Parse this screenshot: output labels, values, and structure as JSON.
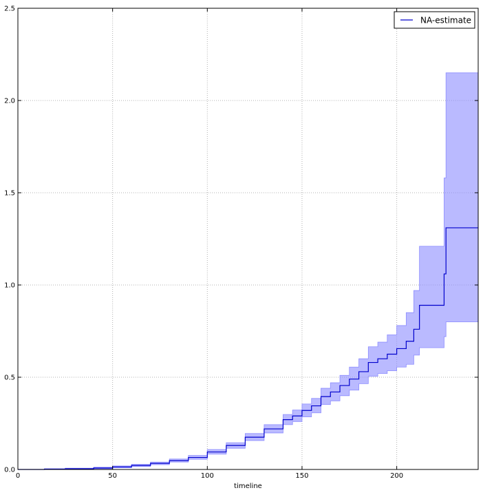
{
  "chart_data": {
    "type": "line",
    "title": "",
    "xlabel": "timeline",
    "ylabel": "",
    "xlim": [
      0,
      243
    ],
    "ylim": [
      0,
      2.5
    ],
    "xticks": [
      0,
      50,
      100,
      150,
      200
    ],
    "xtick_labels": [
      "0",
      "50",
      "100",
      "150",
      "200"
    ],
    "yticks": [
      0,
      0.5,
      1.0,
      1.5,
      2.0,
      2.5
    ],
    "ytick_labels": [
      "0.0",
      "0.5",
      "1.0",
      "1.5",
      "2.0",
      "2.5"
    ],
    "grid": true,
    "legend_position": "top-right",
    "line_color": "#0000cc",
    "band_color": "#8c8cff",
    "series": [
      {
        "name": "NA-estimate",
        "step": "post",
        "points": [
          {
            "x": 0,
            "y": 0,
            "lower": 0,
            "upper": 0
          },
          {
            "x": 14,
            "y": 0.002,
            "lower": 0.0,
            "upper": 0.004
          },
          {
            "x": 25,
            "y": 0.004,
            "lower": 0.001,
            "upper": 0.007
          },
          {
            "x": 40,
            "y": 0.008,
            "lower": 0.004,
            "upper": 0.012
          },
          {
            "x": 50,
            "y": 0.014,
            "lower": 0.009,
            "upper": 0.019
          },
          {
            "x": 60,
            "y": 0.022,
            "lower": 0.016,
            "upper": 0.028
          },
          {
            "x": 70,
            "y": 0.033,
            "lower": 0.026,
            "upper": 0.04
          },
          {
            "x": 80,
            "y": 0.048,
            "lower": 0.04,
            "upper": 0.057
          },
          {
            "x": 90,
            "y": 0.065,
            "lower": 0.055,
            "upper": 0.076
          },
          {
            "x": 100,
            "y": 0.095,
            "lower": 0.083,
            "upper": 0.108
          },
          {
            "x": 110,
            "y": 0.13,
            "lower": 0.115,
            "upper": 0.145
          },
          {
            "x": 120,
            "y": 0.175,
            "lower": 0.157,
            "upper": 0.195
          },
          {
            "x": 130,
            "y": 0.22,
            "lower": 0.198,
            "upper": 0.243
          },
          {
            "x": 140,
            "y": 0.27,
            "lower": 0.243,
            "upper": 0.298
          },
          {
            "x": 145,
            "y": 0.29,
            "lower": 0.26,
            "upper": 0.322
          },
          {
            "x": 150,
            "y": 0.32,
            "lower": 0.285,
            "upper": 0.355
          },
          {
            "x": 155,
            "y": 0.345,
            "lower": 0.307,
            "upper": 0.385
          },
          {
            "x": 160,
            "y": 0.395,
            "lower": 0.352,
            "upper": 0.44
          },
          {
            "x": 165,
            "y": 0.42,
            "lower": 0.372,
            "upper": 0.47
          },
          {
            "x": 170,
            "y": 0.455,
            "lower": 0.4,
            "upper": 0.51
          },
          {
            "x": 175,
            "y": 0.49,
            "lower": 0.43,
            "upper": 0.555
          },
          {
            "x": 180,
            "y": 0.53,
            "lower": 0.465,
            "upper": 0.6
          },
          {
            "x": 185,
            "y": 0.58,
            "lower": 0.505,
            "upper": 0.665
          },
          {
            "x": 190,
            "y": 0.6,
            "lower": 0.52,
            "upper": 0.69
          },
          {
            "x": 195,
            "y": 0.625,
            "lower": 0.535,
            "upper": 0.73
          },
          {
            "x": 200,
            "y": 0.655,
            "lower": 0.555,
            "upper": 0.78
          },
          {
            "x": 205,
            "y": 0.695,
            "lower": 0.57,
            "upper": 0.85
          },
          {
            "x": 209,
            "y": 0.76,
            "lower": 0.62,
            "upper": 0.97
          },
          {
            "x": 212,
            "y": 0.89,
            "lower": 0.66,
            "upper": 1.21
          },
          {
            "x": 225,
            "y": 1.06,
            "lower": 0.72,
            "upper": 1.58
          },
          {
            "x": 226,
            "y": 1.31,
            "lower": 0.8,
            "upper": 2.15
          }
        ]
      }
    ]
  }
}
